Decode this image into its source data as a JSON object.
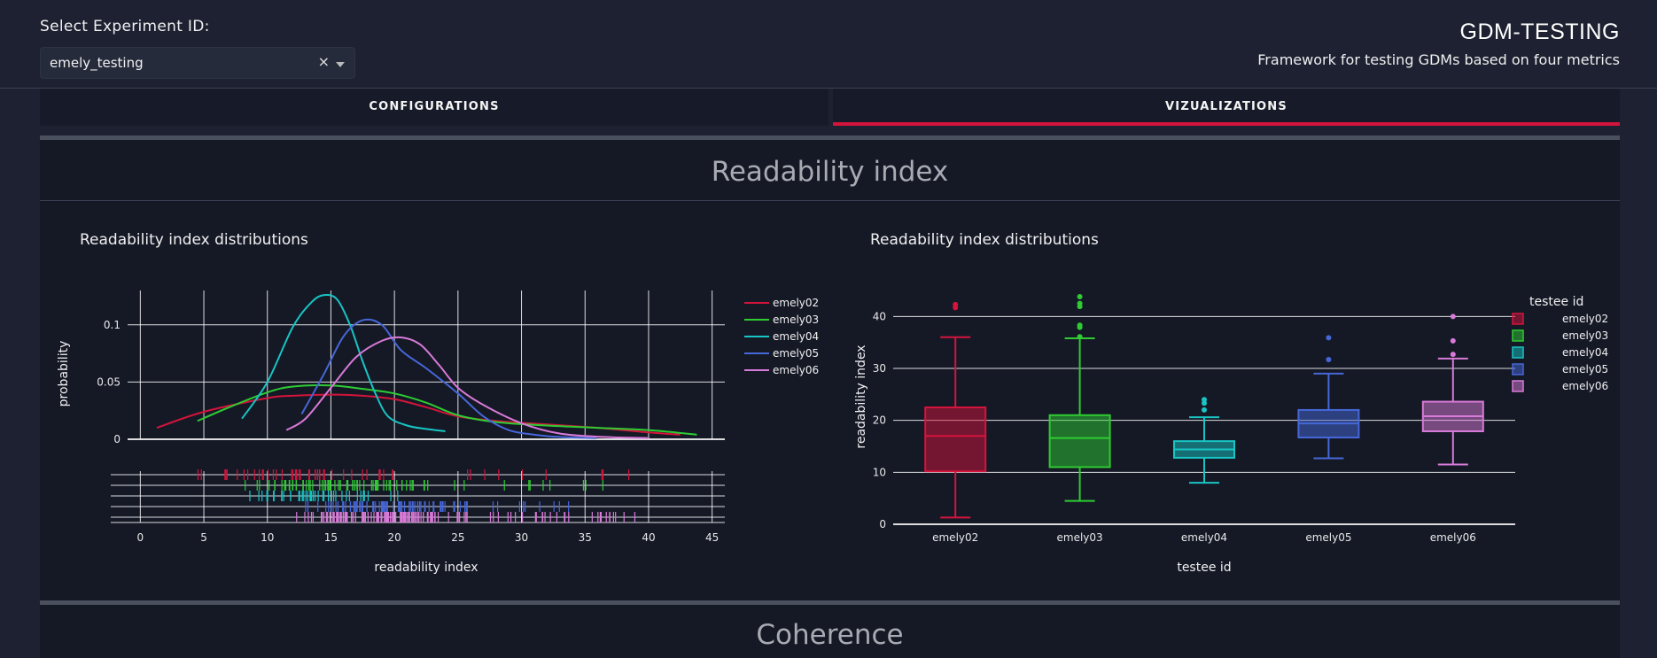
{
  "header": {
    "select_label": "Select Experiment ID:",
    "experiment_value": "emely_testing",
    "clear_glyph": "×",
    "app_title": "GDM-TESTING",
    "app_subtitle": "Framework for testing GDMs based on four metrics"
  },
  "tabs": [
    {
      "label": "CONFIGURATIONS",
      "selected": false
    },
    {
      "label": "VIZUALIZATIONS",
      "selected": true
    }
  ],
  "sections": [
    {
      "title": "Readability index"
    },
    {
      "title": "Coherence"
    }
  ],
  "colors": {
    "emely02": "#d4143c",
    "emely03": "#2ecc32",
    "emely04": "#18c4c4",
    "emely05": "#4667d8",
    "emely06": "#d87ad8",
    "accent": "#d4143c"
  },
  "chart_data": [
    {
      "type": "line",
      "title": "Readability index distributions",
      "xlabel": "readability index",
      "ylabel": "probability",
      "xlim": [
        -1,
        46
      ],
      "ylim": [
        0,
        0.13
      ],
      "xticks": [
        "0",
        "5",
        "10",
        "15",
        "20",
        "25",
        "30",
        "35",
        "40",
        "45"
      ],
      "yticks": [
        "0",
        "0.05",
        "0.1"
      ],
      "grid": true,
      "legend_position": "right",
      "series": [
        {
          "name": "emely02",
          "x": [
            1.3,
            5,
            10,
            12,
            15,
            17.5,
            20,
            22.5,
            25,
            28,
            32,
            36,
            40,
            42.5
          ],
          "y": [
            0.01,
            0.024,
            0.036,
            0.038,
            0.039,
            0.038,
            0.035,
            0.028,
            0.02,
            0.016,
            0.013,
            0.01,
            0.006,
            0.004
          ]
        },
        {
          "name": "emely03",
          "x": [
            4.5,
            7,
            10,
            12,
            15,
            17.5,
            20,
            22.5,
            25,
            28,
            32,
            36,
            40,
            43.8
          ],
          "y": [
            0.016,
            0.028,
            0.041,
            0.046,
            0.047,
            0.044,
            0.04,
            0.032,
            0.021,
            0.015,
            0.012,
            0.01,
            0.008,
            0.004
          ]
        },
        {
          "name": "emely04",
          "x": [
            8,
            10,
            12,
            13.5,
            14.5,
            15.5,
            16.5,
            17.5,
            18.5,
            19.5,
            21,
            22.5,
            24
          ],
          "y": [
            0.018,
            0.05,
            0.098,
            0.12,
            0.126,
            0.122,
            0.1,
            0.068,
            0.04,
            0.02,
            0.012,
            0.009,
            0.007
          ]
        },
        {
          "name": "emely05",
          "x": [
            12.7,
            14.5,
            16,
            17.5,
            19,
            20.5,
            22.5,
            25,
            27,
            29,
            31,
            33,
            35.9
          ],
          "y": [
            0.022,
            0.058,
            0.09,
            0.104,
            0.1,
            0.078,
            0.062,
            0.04,
            0.02,
            0.008,
            0.004,
            0.002,
            0.001
          ]
        },
        {
          "name": "emely06",
          "x": [
            11.5,
            13,
            15,
            17,
            19,
            20.5,
            22,
            23.5,
            25,
            27,
            30,
            33,
            36.5,
            40
          ],
          "y": [
            0.008,
            0.018,
            0.045,
            0.072,
            0.086,
            0.089,
            0.083,
            0.065,
            0.045,
            0.03,
            0.014,
            0.005,
            0.002,
            0.001
          ]
        }
      ]
    },
    {
      "type": "box",
      "title": "Readability index distributions",
      "xlabel": "testee id",
      "ylabel": "readability index",
      "legend_title": "testee id",
      "ylim": [
        0,
        45
      ],
      "yticks": [
        "0",
        "10",
        "20",
        "30",
        "40"
      ],
      "categories": [
        "emely02",
        "emely03",
        "emely04",
        "emely05",
        "emely06"
      ],
      "series": [
        {
          "name": "emely02",
          "min": 1.3,
          "q1": 10.2,
          "median": 17,
          "q3": 22.5,
          "max": 36,
          "outliers": [
            41.7,
            42.3
          ]
        },
        {
          "name": "emely03",
          "min": 4.5,
          "q1": 11,
          "median": 16.6,
          "q3": 21,
          "max": 35.8,
          "outliers": [
            36.1,
            37.9,
            38.3,
            41.9,
            42.5,
            43.8
          ]
        },
        {
          "name": "emely04",
          "min": 8,
          "q1": 12.8,
          "median": 14.4,
          "q3": 16,
          "max": 20.6,
          "outliers": [
            22,
            23.3,
            24
          ]
        },
        {
          "name": "emely05",
          "min": 12.7,
          "q1": 16.7,
          "median": 19.4,
          "q3": 22,
          "max": 29,
          "outliers": [
            31.7,
            35.9
          ]
        },
        {
          "name": "emely06",
          "min": 11.5,
          "q1": 17.9,
          "median": 20.8,
          "q3": 23.6,
          "max": 31.9,
          "outliers": [
            32.7,
            35.3,
            40
          ]
        }
      ]
    }
  ]
}
